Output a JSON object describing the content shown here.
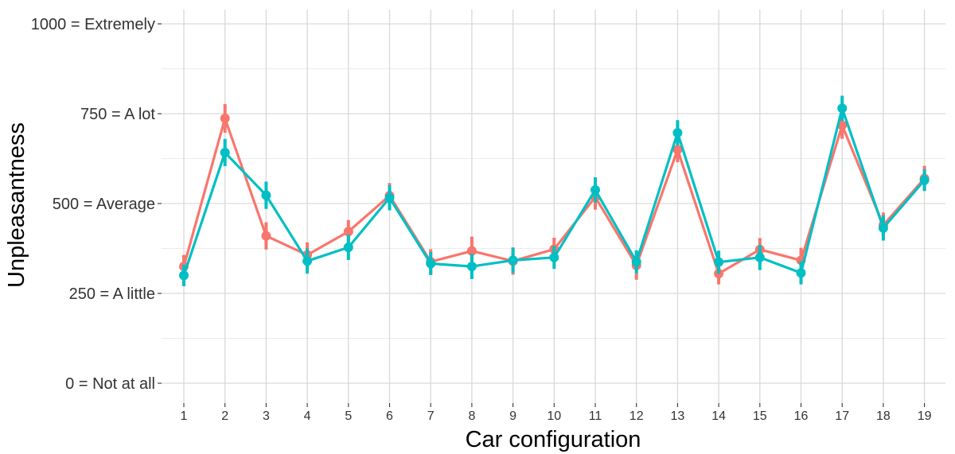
{
  "chart_data": {
    "type": "line",
    "title": "",
    "xlabel": "Car configuration",
    "ylabel": "Unpleasantness",
    "x": [
      1,
      2,
      3,
      4,
      5,
      6,
      7,
      8,
      9,
      10,
      11,
      12,
      13,
      14,
      15,
      16,
      17,
      18,
      19
    ],
    "x_tick_labels": [
      "1",
      "2",
      "3",
      "4",
      "5",
      "6",
      "7",
      "8",
      "9",
      "10",
      "11",
      "12",
      "13",
      "14",
      "15",
      "16",
      "17",
      "18",
      "19"
    ],
    "y_ticks": [
      {
        "value": 0,
        "label": "0 = Not at all"
      },
      {
        "value": 250,
        "label": "250 = A little"
      },
      {
        "value": 500,
        "label": "500 = Average"
      },
      {
        "value": 750,
        "label": "750 = A lot"
      },
      {
        "value": 1000,
        "label": "1000 = Extremely"
      }
    ],
    "ylim": [
      0,
      1000
    ],
    "grid": true,
    "legend": "none",
    "series": [
      {
        "color": "#F8766D",
        "values": [
          325,
          737,
          410,
          357,
          422,
          522,
          338,
          368,
          340,
          373,
          518,
          328,
          650,
          305,
          372,
          342,
          718,
          440,
          570
        ],
        "error": [
          32,
          40,
          38,
          35,
          32,
          35,
          35,
          40,
          38,
          32,
          35,
          40,
          35,
          30,
          32,
          35,
          38,
          35,
          35
        ]
      },
      {
        "color": "#00BFC4",
        "values": [
          300,
          642,
          523,
          340,
          378,
          516,
          333,
          325,
          342,
          350,
          538,
          338,
          697,
          337,
          350,
          307,
          765,
          432,
          565
        ],
        "error": [
          30,
          38,
          38,
          35,
          35,
          35,
          32,
          35,
          35,
          32,
          35,
          32,
          35,
          32,
          35,
          32,
          35,
          35,
          30
        ]
      }
    ]
  }
}
